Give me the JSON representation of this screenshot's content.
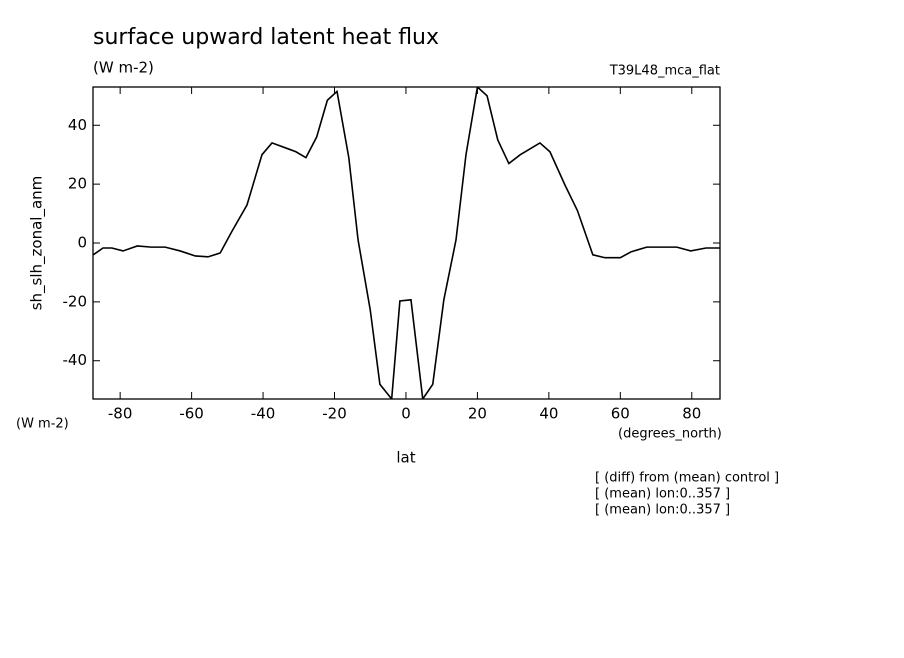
{
  "chart_data": {
    "type": "line",
    "title": "surface upward latent heat flux",
    "units": "(W m-2)",
    "experiment": "T39L48_mca_flat",
    "ylabel": "sh_slh_zonal_anm",
    "yunits": "(W m-2)",
    "xunits": "(degrees_north)",
    "xlabel": "lat",
    "notes": [
      "[ (diff) from (mean) control ]",
      "[ (mean) lon:0..357 ]",
      "[ (mean) lon:0..357 ]"
    ],
    "xlim": [
      -87.6,
      87.9
    ],
    "ylim": [
      -53,
      53
    ],
    "xticks": [
      -80,
      -60,
      -40,
      -20,
      0,
      20,
      40,
      60,
      80
    ],
    "yticks": [
      -40,
      -20,
      0,
      20,
      40
    ],
    "x": [
      -87.5,
      -84.8,
      -82.3,
      -79.2,
      -75.2,
      -71.3,
      -67.4,
      -63.2,
      -59,
      -55.4,
      -52,
      -48.7,
      -44.5,
      -40.3,
      -37.5,
      -33,
      -30.8,
      -28,
      -25,
      -22,
      -19.3,
      -16,
      -13.4,
      -10,
      -7.3,
      -4,
      -1.7,
      1.4,
      4.7,
      7.5,
      10.6,
      14,
      16.8,
      20,
      22.7,
      25.7,
      28.8,
      32,
      37.5,
      40.3,
      44.5,
      48,
      52.3,
      55.7,
      60,
      63,
      67.4,
      71.6,
      75.8,
      79.7,
      84,
      87.9
    ],
    "series": [
      {
        "name": "sh_slh_zonal_anm",
        "color": "#000000",
        "values": [
          -4,
          -1.7,
          -1.7,
          -2.7,
          -1,
          -1.4,
          -1.4,
          -2.7,
          -4.4,
          -4.7,
          -3.4,
          4,
          12.9,
          30,
          34,
          32,
          31,
          29,
          36,
          48.5,
          51.5,
          29,
          1,
          -22.7,
          -48,
          -53,
          -19.7,
          -19.3,
          -53,
          -48,
          -19.3,
          1,
          30,
          53,
          50,
          35,
          27,
          30,
          34,
          31,
          19.7,
          11,
          -4,
          -5,
          -5,
          -3,
          -1.4,
          -1.4,
          -1.4,
          -2.7,
          -1.7,
          -1.7
        ]
      }
    ]
  }
}
